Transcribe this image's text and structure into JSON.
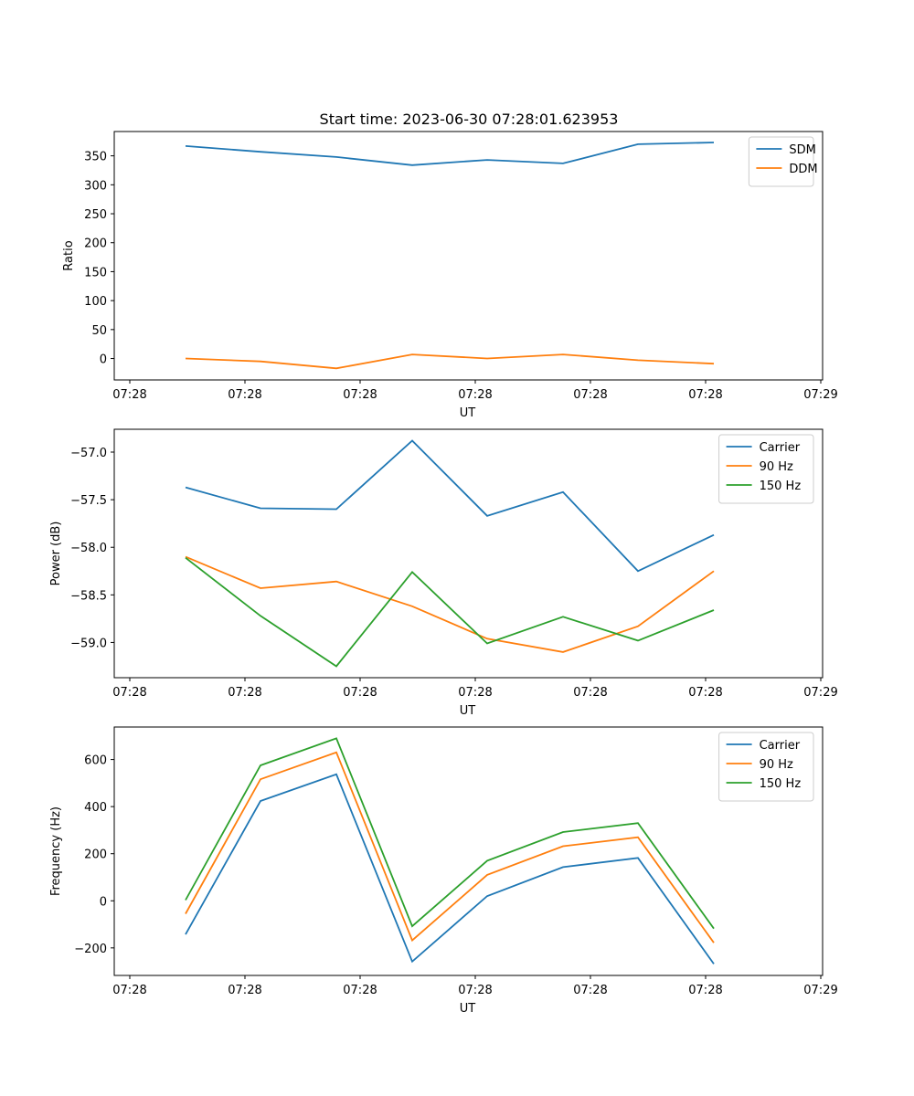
{
  "title": "Start time: 2023-06-30 07:28:01.623953",
  "colors": {
    "blue": "#1f77b4",
    "orange": "#ff7f0e",
    "green": "#2ca02c"
  },
  "chart_data": [
    {
      "type": "line",
      "xlabel": "UT",
      "ylabel": "Ratio",
      "xtick_labels": [
        "07:28",
        "07:28",
        "07:28",
        "07:28",
        "07:28",
        "07:28",
        "07:29"
      ],
      "yticks": [
        0,
        50,
        100,
        150,
        200,
        250,
        300,
        350
      ],
      "ylim": [
        -37,
        392
      ],
      "legend_position": "upper-right",
      "series": [
        {
          "name": "SDM",
          "color": "#1f77b4",
          "values": [
            367,
            357,
            348,
            334,
            343,
            337,
            370,
            373
          ]
        },
        {
          "name": "DDM",
          "color": "#ff7f0e",
          "values": [
            0,
            -5,
            -17,
            7,
            0,
            7,
            -3,
            -9
          ]
        }
      ]
    },
    {
      "type": "line",
      "xlabel": "UT",
      "ylabel": "Power (dB)",
      "xtick_labels": [
        "07:28",
        "07:28",
        "07:28",
        "07:28",
        "07:28",
        "07:28",
        "07:29"
      ],
      "yticks": [
        -57.0,
        -57.5,
        -58.0,
        -58.5,
        -59.0
      ],
      "ytick_labels": [
        "−57.0",
        "−57.5",
        "−58.0",
        "−58.5",
        "−59.0"
      ],
      "ylim": [
        -59.37,
        -56.76
      ],
      "legend_position": "upper-right",
      "series": [
        {
          "name": "Carrier",
          "color": "#1f77b4",
          "values": [
            -57.37,
            -57.59,
            -57.6,
            -56.88,
            -57.67,
            -57.42,
            -58.25,
            -57.87
          ]
        },
        {
          "name": "90 Hz",
          "color": "#ff7f0e",
          "values": [
            -58.1,
            -58.43,
            -58.36,
            -58.62,
            -58.96,
            -59.1,
            -58.83,
            -58.25
          ]
        },
        {
          "name": "150 Hz",
          "color": "#2ca02c",
          "values": [
            -58.11,
            -58.72,
            -59.25,
            -58.26,
            -59.01,
            -58.73,
            -58.98,
            -58.66
          ]
        }
      ]
    },
    {
      "type": "line",
      "xlabel": "UT",
      "ylabel": "Frequency (Hz)",
      "xtick_labels": [
        "07:28",
        "07:28",
        "07:28",
        "07:28",
        "07:28",
        "07:28",
        "07:29"
      ],
      "yticks": [
        -200,
        0,
        200,
        400,
        600
      ],
      "ytick_labels": [
        "−200",
        "0",
        "200",
        "400",
        "600"
      ],
      "ylim": [
        -317,
        738
      ],
      "legend_position": "upper-right",
      "series": [
        {
          "name": "Carrier",
          "color": "#1f77b4",
          "values": [
            -143,
            424,
            537,
            -258,
            20,
            143,
            182,
            -268
          ]
        },
        {
          "name": "90 Hz",
          "color": "#ff7f0e",
          "values": [
            -55,
            516,
            630,
            -168,
            110,
            232,
            270,
            -178
          ]
        },
        {
          "name": "150 Hz",
          "color": "#2ca02c",
          "values": [
            3,
            575,
            690,
            -108,
            170,
            292,
            330,
            -118
          ]
        }
      ]
    }
  ]
}
